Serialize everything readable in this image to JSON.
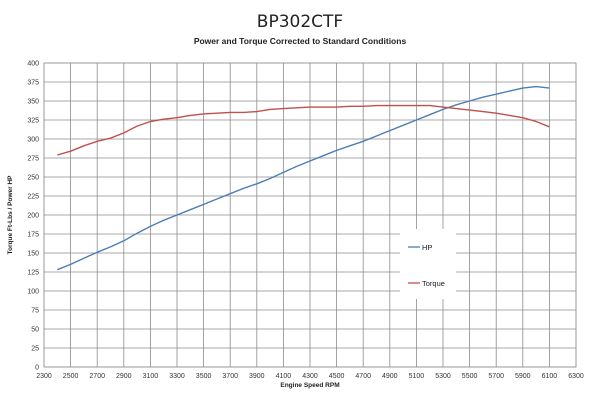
{
  "chart_data": {
    "type": "line",
    "title": "BP302CTF",
    "subtitle": "Power and Torque Corrected to Standard Conditions",
    "xlabel": "Engine Speed RPM",
    "ylabel": "Torque Ft-Lbs / Power HP",
    "xlim": [
      2300,
      6300
    ],
    "ylim": [
      0,
      400
    ],
    "xticks": [
      2300,
      2500,
      2700,
      2900,
      3100,
      3300,
      3500,
      3700,
      3900,
      4100,
      4300,
      4500,
      4700,
      4900,
      5100,
      5300,
      5500,
      5700,
      5900,
      6100,
      6300
    ],
    "yticks": [
      0,
      25,
      50,
      75,
      100,
      125,
      150,
      175,
      200,
      225,
      250,
      275,
      300,
      325,
      350,
      375,
      400
    ],
    "grid": true,
    "legend_position": "right",
    "series": [
      {
        "name": "HP",
        "color": "#4a7eb5",
        "x": [
          2400,
          2500,
          2600,
          2700,
          2800,
          2900,
          3000,
          3100,
          3200,
          3300,
          3400,
          3500,
          3600,
          3700,
          3800,
          3900,
          4000,
          4100,
          4200,
          4300,
          4400,
          4500,
          4600,
          4700,
          4800,
          4900,
          5000,
          5100,
          5200,
          5300,
          5400,
          5500,
          5600,
          5700,
          5800,
          5900,
          6000,
          6100
        ],
        "y": [
          128,
          135,
          143,
          151,
          158,
          166,
          176,
          185,
          193,
          200,
          207,
          214,
          221,
          228,
          235,
          241,
          248,
          256,
          264,
          271,
          278,
          285,
          291,
          297,
          304,
          311,
          318,
          325,
          332,
          339,
          345,
          350,
          355,
          359,
          363,
          367,
          369,
          367
        ]
      },
      {
        "name": "Torque",
        "color": "#c0504d",
        "x": [
          2400,
          2500,
          2600,
          2700,
          2800,
          2900,
          3000,
          3100,
          3200,
          3300,
          3400,
          3500,
          3600,
          3700,
          3800,
          3900,
          4000,
          4100,
          4200,
          4300,
          4400,
          4500,
          4600,
          4700,
          4800,
          4900,
          5000,
          5100,
          5200,
          5300,
          5400,
          5500,
          5600,
          5700,
          5800,
          5900,
          6000,
          6100
        ],
        "y": [
          279,
          284,
          291,
          297,
          301,
          308,
          317,
          323,
          326,
          328,
          331,
          333,
          334,
          335,
          335,
          336,
          339,
          340,
          341,
          342,
          342,
          342,
          343,
          343,
          344,
          344,
          344,
          344,
          344,
          342,
          340,
          338,
          336,
          334,
          331,
          328,
          323,
          316
        ]
      }
    ]
  }
}
